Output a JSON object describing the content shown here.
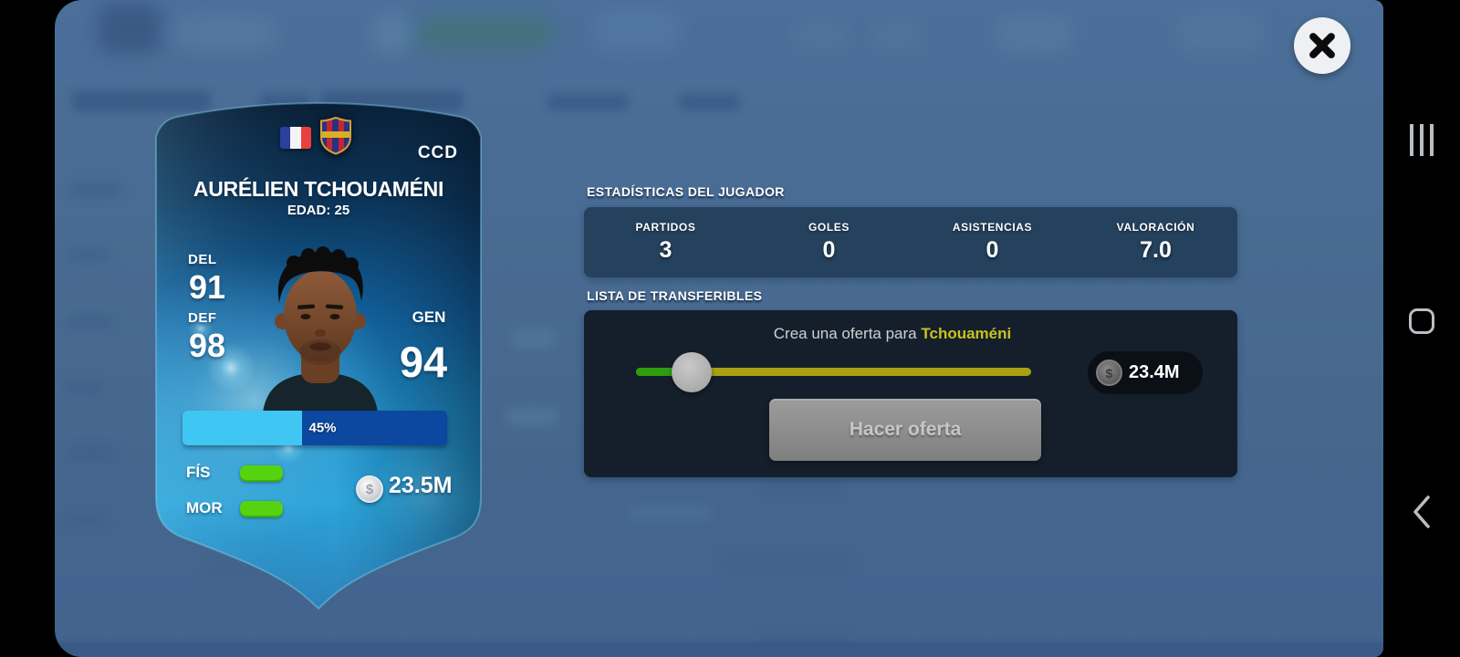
{
  "player_card": {
    "position": "CCD",
    "name": "AURÉLIEN TCHOUAMÉNI",
    "age_label": "EDAD: 25",
    "del_label": "DEL",
    "del_value": "91",
    "def_label": "DEF",
    "def_value": "98",
    "gen_label": "GEN",
    "gen_value": "94",
    "progress_percent": "45%",
    "fis_label": "FÍS",
    "mor_label": "MOR",
    "market_value": "23.5M"
  },
  "stats_section": {
    "title": "ESTADÍSTICAS DEL JUGADOR",
    "items": [
      {
        "label": "PARTIDOS",
        "value": "3"
      },
      {
        "label": "GOLES",
        "value": "0"
      },
      {
        "label": "ASISTENCIAS",
        "value": "0"
      },
      {
        "label": "VALORACIÓN",
        "value": "7.0"
      }
    ]
  },
  "transfer_section": {
    "title": "LISTA DE TRANSFERIBLES",
    "offer_prefix": "Crea una oferta para",
    "offer_player_name": "Tchouaméni",
    "offer_amount": "23.4M",
    "button_label": "Hacer oferta",
    "slider_green_percent": 10,
    "slider_knob_percent": 14
  },
  "icons": {
    "coin_symbol": "$"
  },
  "colors": {
    "accent_yellow": "#c9c21f",
    "slider_green": "#2f9e0e",
    "slider_track": "#a8a112",
    "bar_fill_light": "#3fc6f3",
    "bar_fill_dark": "#0c47a0",
    "condition_green": "#56d30f",
    "stats_panel_bg": "#24415d",
    "transfer_panel_bg": "#141f2b",
    "backdrop_blue": "#47698f"
  }
}
